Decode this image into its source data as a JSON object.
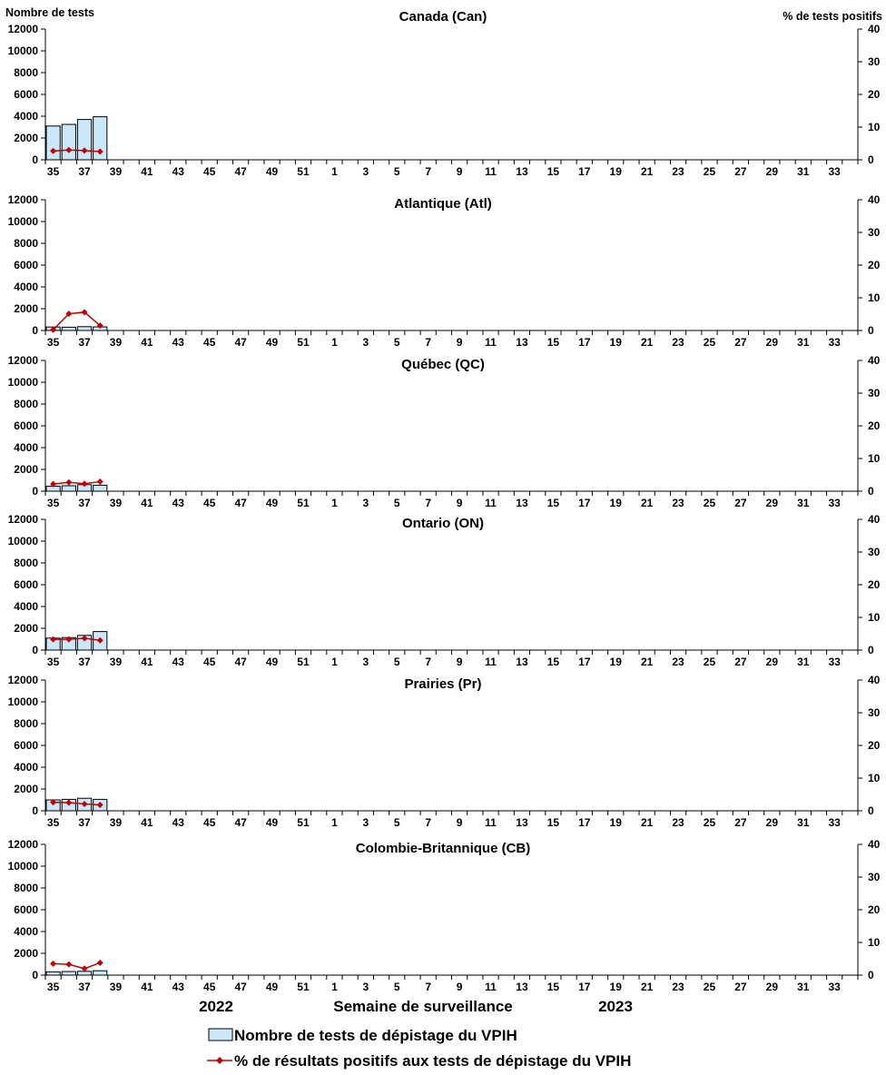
{
  "y_left_label": "Nombre de tests",
  "y_right_label": "% de tests positifs",
  "x_axis_title": "Semaine de surveillance",
  "year_left": "2022",
  "year_right": "2023",
  "legend": {
    "bars": "Nombre de tests de dépistage du VPIH",
    "line": "% de résultats positifs aux tests de dépistage du VPIH"
  },
  "colors": {
    "bar_fill": "#cce6fa",
    "bar_stroke": "#000000",
    "line": "#c00000",
    "axis": "#000000"
  },
  "chart_data": {
    "type": "bar",
    "x_week_labels": [
      "35",
      "37",
      "39",
      "41",
      "43",
      "45",
      "47",
      "49",
      "51",
      "1",
      "3",
      "5",
      "7",
      "9",
      "11",
      "13",
      "15",
      "17",
      "19",
      "21",
      "23",
      "25",
      "27",
      "29",
      "31",
      "33"
    ],
    "weeks_total": 52,
    "y_left_ticks": [
      "0",
      "2000",
      "4000",
      "6000",
      "8000",
      "10000",
      "12000"
    ],
    "y_left_range": [
      0,
      12000
    ],
    "y_right_ticks": [
      "0",
      "10",
      "20",
      "30",
      "40"
    ],
    "y_right_range": [
      0,
      40
    ],
    "panels": [
      {
        "title": "Canada (Can)",
        "tests": [
          3100,
          3250,
          3700,
          3950
        ],
        "positivity": [
          2.7,
          3.0,
          2.8,
          2.5
        ]
      },
      {
        "title": "Atlantique (Atl)",
        "tests": [
          320,
          300,
          350,
          330
        ],
        "positivity": [
          0.2,
          5.1,
          5.6,
          1.5
        ]
      },
      {
        "title": "Québec (QC)",
        "tests": [
          450,
          500,
          600,
          550
        ],
        "positivity": [
          2.2,
          2.7,
          2.3,
          2.9
        ]
      },
      {
        "title": "Ontario (ON)",
        "tests": [
          1100,
          1150,
          1350,
          1700
        ],
        "positivity": [
          3.3,
          3.3,
          3.6,
          3.0
        ]
      },
      {
        "title": "Prairies (Pr)",
        "tests": [
          1000,
          1050,
          1150,
          1050
        ],
        "positivity": [
          2.6,
          2.5,
          2.1,
          1.8
        ]
      },
      {
        "title": "Colombie-Britannique (CB)",
        "tests": [
          300,
          330,
          350,
          400
        ],
        "positivity": [
          3.5,
          3.3,
          2.0,
          3.8
        ]
      }
    ]
  }
}
